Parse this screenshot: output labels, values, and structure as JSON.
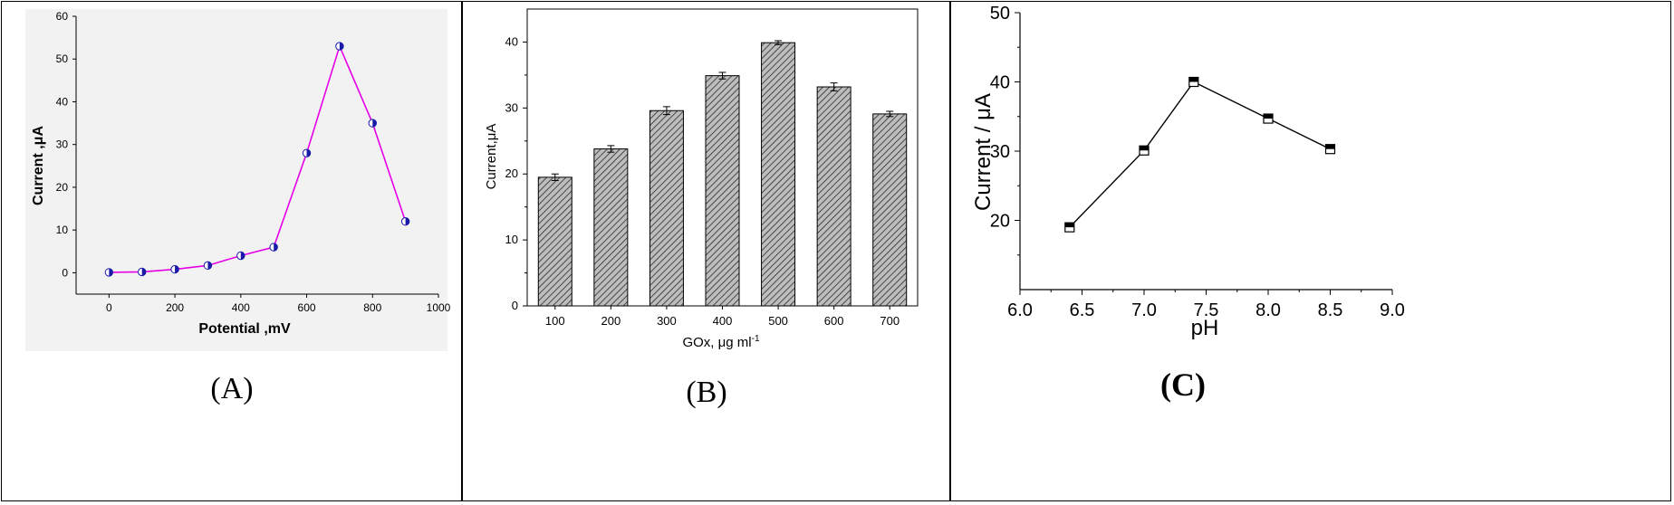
{
  "chart_data": [
    {
      "panel": "A",
      "type": "line",
      "caption": "(A)",
      "xlabel": "Potential ,mV",
      "ylabel": "Current ,μA",
      "xlim": [
        -100,
        1000
      ],
      "ylim": [
        -5,
        60
      ],
      "xticks": [
        0,
        200,
        400,
        600,
        800,
        1000
      ],
      "yticks": [
        0,
        10,
        20,
        30,
        40,
        50,
        60
      ],
      "grid": false,
      "colors": {
        "line": "#e600e6",
        "marker": "#1a1aa8",
        "background": "#f2f2f2"
      },
      "x": [
        0,
        100,
        200,
        300,
        400,
        500,
        600,
        700,
        800,
        900
      ],
      "y": [
        0.1,
        0.2,
        0.8,
        1.7,
        4,
        6,
        28,
        53,
        35,
        12
      ]
    },
    {
      "panel": "B",
      "type": "bar",
      "caption": "(B)",
      "xlabel": "GOx, μg ml",
      "xlabel_superscript": "-1",
      "ylabel": "Current,μA",
      "categories": [
        "100",
        "200",
        "300",
        "400",
        "500",
        "600",
        "700"
      ],
      "values": [
        19.5,
        23.8,
        29.6,
        34.9,
        39.9,
        33.2,
        29.1
      ],
      "errors": [
        0.5,
        0.5,
        0.6,
        0.5,
        0.3,
        0.6,
        0.4
      ],
      "yticks": [
        0,
        10,
        20,
        30,
        40
      ],
      "ylim": [
        0,
        45
      ],
      "grid": false,
      "colors": {
        "bar": "#b8b8b8",
        "hatch": "#333333"
      }
    },
    {
      "panel": "C",
      "type": "line",
      "caption": "(C)",
      "xlabel": "pH",
      "ylabel": "Current / μA",
      "xlim": [
        6.0,
        9.0
      ],
      "ylim": [
        10,
        50
      ],
      "xtick_labels": [
        "6.0",
        "6.5",
        "7.0",
        "7.5",
        "8.0",
        "8.5",
        "9.0"
      ],
      "ytick_labels": [
        "20",
        "30",
        "40",
        "50"
      ],
      "grid": false,
      "colors": {
        "line": "#000000",
        "marker": "#000000"
      },
      "x": [
        6.4,
        7.0,
        7.4,
        8.0,
        8.5
      ],
      "y": [
        19,
        30.1,
        40,
        34.7,
        30.3
      ]
    }
  ]
}
